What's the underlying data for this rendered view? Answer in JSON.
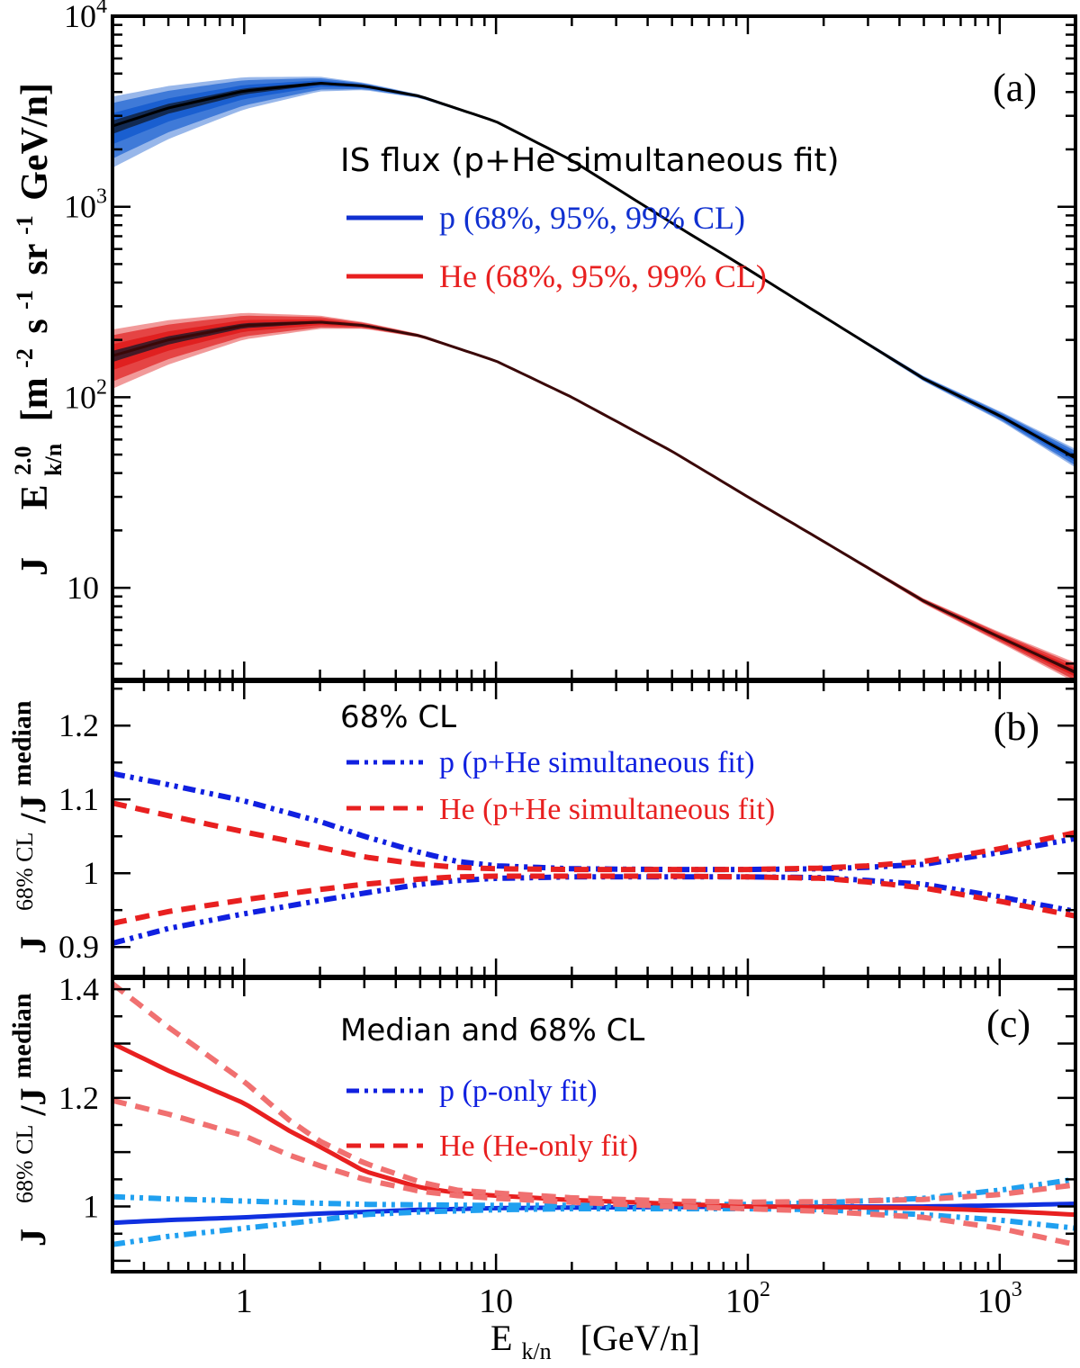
{
  "xaxis": {
    "label_main": "E",
    "label_sub": "k/n",
    "label_unit": "[GeV/n]",
    "range": [
      0.3,
      2000
    ],
    "ticks": [
      {
        "value": 1,
        "base": "1",
        "exp": ""
      },
      {
        "value": 10,
        "base": "10",
        "exp": ""
      },
      {
        "value": 100,
        "base": "10",
        "exp": "2"
      },
      {
        "value": 1000,
        "base": "10",
        "exp": "3"
      }
    ]
  },
  "chart_data": [
    {
      "panel": "a",
      "type": "line",
      "yscale": "log",
      "ylim": [
        3.3,
        10000
      ],
      "panel_tag": "(a)",
      "title": "IS flux (p+He simultaneous fit)",
      "ylabel": {
        "J": "J",
        "E": "E",
        "E_sup": "2.0",
        "E_sub": "k/n",
        "unit_pre": "[m",
        "m_exp": "-2",
        "s": "s",
        "s_exp": "-1",
        "sr": "sr",
        "sr_exp": "-1",
        "unit_post": "GeV/n]"
      },
      "yticks": [
        {
          "value": 10,
          "base": "10",
          "exp": ""
        },
        {
          "value": 100,
          "base": "10",
          "exp": "2"
        },
        {
          "value": 1000,
          "base": "10",
          "exp": "3"
        },
        {
          "value": 10000,
          "base": "10",
          "exp": "4"
        }
      ],
      "legend": [
        {
          "label": "p (68%, 95%, 99% CL)",
          "color": "#1030d0",
          "style": "solid"
        },
        {
          "label": "He (68%, 95%, 99% CL)",
          "color": "#e82020",
          "style": "solid"
        }
      ],
      "series": [
        {
          "name": "p",
          "color": "#1a5fd0",
          "x": [
            0.3,
            0.5,
            1,
            2,
            3,
            5,
            10,
            20,
            50,
            100,
            200,
            500,
            1000,
            2000
          ],
          "median": [
            2650,
            3300,
            4050,
            4450,
            4300,
            3800,
            2800,
            1750,
            820,
            470,
            265,
            125,
            80,
            48
          ],
          "band_low_frac": [
            0.73,
            0.79,
            0.87,
            0.94,
            0.97,
            0.985,
            0.992,
            0.995,
            0.995,
            0.995,
            0.993,
            0.98,
            0.965,
            0.93
          ],
          "band_high_frac": [
            1.25,
            1.18,
            1.11,
            1.05,
            1.025,
            1.012,
            1.006,
            1.005,
            1.005,
            1.005,
            1.007,
            1.02,
            1.035,
            1.07
          ]
        },
        {
          "name": "He",
          "color": "#e02020",
          "x": [
            0.3,
            0.5,
            1,
            2,
            3,
            5,
            10,
            20,
            50,
            100,
            200,
            500,
            1000,
            2000
          ],
          "median": [
            165,
            200,
            238,
            248,
            238,
            210,
            155,
            100,
            52,
            30,
            17.5,
            8.5,
            5.5,
            3.6
          ],
          "band_low_frac": [
            0.78,
            0.83,
            0.9,
            0.95,
            0.975,
            0.987,
            0.993,
            0.995,
            0.995,
            0.995,
            0.993,
            0.98,
            0.96,
            0.925
          ],
          "band_high_frac": [
            1.22,
            1.16,
            1.1,
            1.05,
            1.025,
            1.013,
            1.007,
            1.005,
            1.005,
            1.005,
            1.007,
            1.02,
            1.04,
            1.075
          ]
        }
      ]
    },
    {
      "panel": "b",
      "type": "line",
      "yscale": "linear",
      "ylim": [
        0.86,
        1.26
      ],
      "panel_tag": "(b)",
      "title": "68% CL",
      "ylabel": {
        "J": "J",
        "sup": "68% CL",
        "slash": "/J",
        "sup2": "median"
      },
      "yticks": [
        {
          "value": 0.9,
          "label": "0.9"
        },
        {
          "value": 1.0,
          "label": "1"
        },
        {
          "value": 1.1,
          "label": "1.1"
        },
        {
          "value": 1.2,
          "label": "1.2"
        }
      ],
      "legend": [
        {
          "label": "p  (p+He simultaneous fit)",
          "color": "#1020e0",
          "style": "dashdot"
        },
        {
          "label": "He  (p+He simultaneous fit)",
          "color": "#e82020",
          "style": "dashed"
        }
      ],
      "series": [
        {
          "name": "p upper",
          "style": "dashdot",
          "color": "#1020e0",
          "x": [
            0.3,
            0.5,
            1,
            2,
            3,
            5,
            7,
            10,
            20,
            50,
            100,
            200,
            300,
            500,
            1000,
            2000
          ],
          "values": [
            1.135,
            1.12,
            1.098,
            1.07,
            1.05,
            1.028,
            1.016,
            1.01,
            1.006,
            1.005,
            1.005,
            1.006,
            1.008,
            1.012,
            1.028,
            1.047
          ]
        },
        {
          "name": "p lower",
          "style": "dashdot",
          "color": "#1020e0",
          "x": [
            0.3,
            0.5,
            1,
            2,
            3,
            5,
            7,
            10,
            20,
            50,
            100,
            200,
            300,
            500,
            1000,
            2000
          ],
          "values": [
            0.905,
            0.925,
            0.945,
            0.963,
            0.973,
            0.985,
            0.99,
            0.993,
            0.995,
            0.995,
            0.995,
            0.994,
            0.99,
            0.985,
            0.968,
            0.948
          ]
        },
        {
          "name": "He upper",
          "style": "dashed",
          "color": "#e82020",
          "x": [
            0.3,
            0.5,
            1,
            2,
            3,
            5,
            7,
            10,
            20,
            50,
            100,
            200,
            300,
            500,
            1000,
            2000
          ],
          "values": [
            1.095,
            1.078,
            1.056,
            1.035,
            1.022,
            1.012,
            1.008,
            1.006,
            1.005,
            1.005,
            1.005,
            1.007,
            1.01,
            1.016,
            1.033,
            1.055
          ]
        },
        {
          "name": "He lower",
          "style": "dashed",
          "color": "#e82020",
          "x": [
            0.3,
            0.5,
            1,
            2,
            3,
            5,
            7,
            10,
            20,
            50,
            100,
            200,
            300,
            500,
            1000,
            2000
          ],
          "values": [
            0.932,
            0.948,
            0.964,
            0.978,
            0.985,
            0.992,
            0.995,
            0.996,
            0.996,
            0.996,
            0.995,
            0.993,
            0.988,
            0.98,
            0.962,
            0.942
          ]
        }
      ]
    },
    {
      "panel": "c",
      "type": "line",
      "yscale": "linear",
      "ylim": [
        0.88,
        1.42
      ],
      "panel_tag": "(c)",
      "title": "Median and 68% CL",
      "ylabel": {
        "J": "J",
        "sup": "68% CL",
        "slash": "/J",
        "sup2": "median"
      },
      "yticks": [
        {
          "value": 1.0,
          "label": "1"
        },
        {
          "value": 1.2,
          "label": "1.2"
        },
        {
          "value": 1.4,
          "label": "1.4"
        }
      ],
      "legend": [
        {
          "label": "p  (p-only fit)",
          "color": "#1020e0",
          "style": "dashdot"
        },
        {
          "label": "He  (He-only fit)",
          "color": "#e82020",
          "style": "dashed"
        }
      ],
      "series": [
        {
          "name": "p median",
          "style": "solid",
          "color": "#1030e0",
          "x": [
            0.3,
            0.5,
            1,
            2,
            3,
            5,
            10,
            20,
            50,
            100,
            200,
            500,
            1000,
            2000
          ],
          "values": [
            0.97,
            0.975,
            0.98,
            0.987,
            0.99,
            0.994,
            0.997,
            0.998,
            0.999,
            1.0,
            1.0,
            1.0,
            1.002,
            1.005
          ]
        },
        {
          "name": "p upper",
          "style": "dashdot",
          "color": "#20a0f0",
          "x": [
            0.3,
            0.5,
            1,
            2,
            3,
            5,
            10,
            20,
            50,
            100,
            200,
            500,
            1000,
            2000
          ],
          "values": [
            1.018,
            1.014,
            1.01,
            1.006,
            1.004,
            1.003,
            1.002,
            1.002,
            1.003,
            1.004,
            1.007,
            1.015,
            1.03,
            1.05
          ]
        },
        {
          "name": "p lower",
          "style": "dashdot",
          "color": "#20a0f0",
          "x": [
            0.3,
            0.5,
            1,
            2,
            3,
            5,
            10,
            20,
            50,
            100,
            200,
            500,
            1000,
            2000
          ],
          "values": [
            0.93,
            0.945,
            0.96,
            0.975,
            0.985,
            0.99,
            0.994,
            0.996,
            0.996,
            0.996,
            0.994,
            0.985,
            0.975,
            0.96
          ]
        },
        {
          "name": "He median",
          "style": "solid",
          "color": "#e82020",
          "x": [
            0.3,
            0.5,
            1,
            1.5,
            2,
            3,
            5,
            7,
            10,
            20,
            50,
            100,
            200,
            500,
            1000,
            2000
          ],
          "values": [
            1.3,
            1.25,
            1.19,
            1.14,
            1.11,
            1.065,
            1.035,
            1.025,
            1.02,
            1.012,
            1.005,
            1.0,
            0.999,
            0.997,
            0.992,
            0.985
          ]
        },
        {
          "name": "He upper",
          "style": "dashed",
          "color": "#f07070",
          "x": [
            0.3,
            0.5,
            1,
            1.5,
            2,
            3,
            5,
            7,
            10,
            20,
            50,
            100,
            200,
            500,
            1000,
            2000
          ],
          "values": [
            1.41,
            1.33,
            1.23,
            1.16,
            1.12,
            1.08,
            1.045,
            1.03,
            1.025,
            1.016,
            1.01,
            1.008,
            1.009,
            1.013,
            1.022,
            1.04
          ]
        },
        {
          "name": "He lower",
          "style": "dashed",
          "color": "#f07070",
          "x": [
            0.3,
            0.5,
            1,
            1.5,
            2,
            3,
            5,
            7,
            10,
            20,
            50,
            100,
            200,
            500,
            1000,
            2000
          ],
          "values": [
            1.195,
            1.17,
            1.13,
            1.095,
            1.075,
            1.05,
            1.028,
            1.02,
            1.015,
            1.008,
            1.0,
            0.996,
            0.991,
            0.98,
            0.96,
            0.93
          ]
        }
      ]
    }
  ]
}
